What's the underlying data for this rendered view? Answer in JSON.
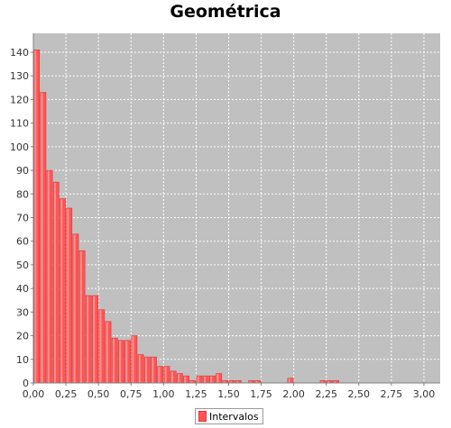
{
  "chart_data": {
    "type": "bar",
    "title": "Geométrica",
    "xlabel": "",
    "ylabel": "",
    "xlim": [
      0.0,
      3.125
    ],
    "ylim": [
      0,
      148
    ],
    "x_ticks": [
      "0,00",
      "0,25",
      "0,50",
      "0,75",
      "1,00",
      "1,25",
      "1,50",
      "1,75",
      "2,00",
      "2,25",
      "2,50",
      "2,75",
      "3,00"
    ],
    "y_ticks": [
      "0",
      "10",
      "20",
      "30",
      "40",
      "50",
      "60",
      "70",
      "80",
      "90",
      "100",
      "110",
      "120",
      "130",
      "140"
    ],
    "bin_width": 0.05,
    "bin_start": 0.0,
    "values": [
      141,
      123,
      90,
      85,
      78,
      74,
      63,
      56,
      37,
      37,
      31,
      26,
      19,
      18,
      18,
      20,
      12,
      11,
      11,
      7,
      7,
      5,
      4,
      3,
      1,
      3,
      3,
      3,
      4,
      1,
      1,
      1,
      0,
      1,
      1,
      0,
      0,
      0,
      0,
      2,
      0,
      0,
      0,
      0,
      1,
      1,
      1
    ],
    "series": [
      {
        "name": "Intervalos",
        "color": "#ff5555"
      }
    ],
    "grid": true,
    "legend": "bottom-center",
    "colors": {
      "plot_background": "#c0c0c0",
      "bar_fill": "#ff5555",
      "bar_highlight": "#ff8c8c",
      "bar_edge": "#d43a3a",
      "grid": "#ffffff"
    }
  }
}
